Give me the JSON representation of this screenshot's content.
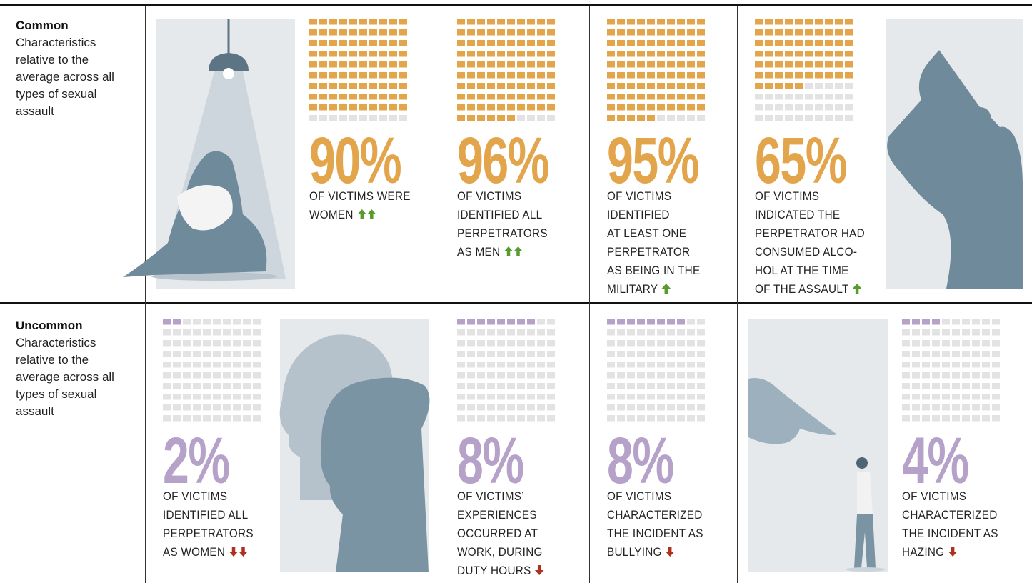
{
  "rows": [
    {
      "label": "Common",
      "description": "Characteristics relative to the average across all types of sexual assault",
      "color": "#e2a54b",
      "cells": [
        {
          "value": 90,
          "percent": "90%",
          "lines": [
            "OF VICTIMS WERE",
            "WOMEN"
          ],
          "arrows": 2,
          "direction": "up"
        },
        {
          "value": 96,
          "percent": "96%",
          "lines": [
            "OF VICTIMS",
            "IDENTIFIED ALL",
            "PERPETRATORS",
            "AS MEN"
          ],
          "arrows": 2,
          "direction": "up"
        },
        {
          "value": 95,
          "percent": "95%",
          "lines": [
            "OF VICTIMS",
            "IDENTIFIED",
            "AT LEAST ONE",
            "PERPETRATOR",
            "AS BEING IN THE",
            "MILITARY"
          ],
          "arrows": 1,
          "direction": "up"
        },
        {
          "value": 65,
          "percent": "65%",
          "lines": [
            "OF VICTIMS",
            "INDICATED THE",
            "PERPETRATOR HAD",
            "CONSUMED ALCO-",
            "HOL AT THE TIME",
            "OF THE ASSAULT"
          ],
          "arrows": 1,
          "direction": "up"
        }
      ]
    },
    {
      "label": "Uncommon",
      "description": "Characteristics relative to the average across all types of sexual assault",
      "color": "#b6a1c9",
      "cells": [
        {
          "value": 2,
          "percent": "2%",
          "lines": [
            "OF VICTIMS",
            "IDENTIFIED ALL",
            "PERPETRATORS",
            "AS WOMEN"
          ],
          "arrows": 2,
          "direction": "down"
        },
        {
          "value": 8,
          "percent": "8%",
          "lines": [
            "OF VICTIMS’",
            "EXPERIENCES",
            "OCCURRED AT",
            "WORK, DURING",
            "DUTY HOURS"
          ],
          "arrows": 1,
          "direction": "down"
        },
        {
          "value": 8,
          "percent": "8%",
          "lines": [
            "OF VICTIMS",
            "CHARACTERIZED",
            "THE INCIDENT AS",
            "BULLYING"
          ],
          "arrows": 1,
          "direction": "down"
        },
        {
          "value": 4,
          "percent": "4%",
          "lines": [
            "OF VICTIMS",
            "CHARACTERIZED",
            "THE INCIDENT AS",
            "HAZING"
          ],
          "arrows": 1,
          "direction": "down"
        }
      ]
    }
  ]
}
